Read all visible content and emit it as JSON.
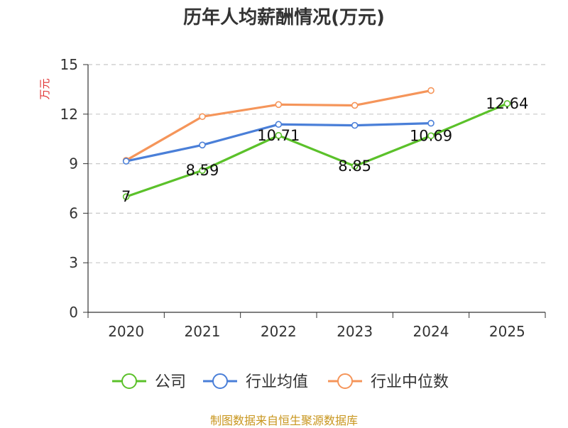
{
  "chart_data": {
    "type": "line",
    "title": "历年人均薪酬情况(万元)",
    "ylabel": "万元",
    "xlabel": "",
    "ylim": [
      0,
      15
    ],
    "yticks": [
      0,
      3,
      6,
      9,
      12,
      15
    ],
    "categories": [
      "2020",
      "2021",
      "2022",
      "2023",
      "2024",
      "2025"
    ],
    "grid": true,
    "legend_position": "bottom",
    "series": [
      {
        "name": "公司",
        "color": "#5bc12a",
        "values": [
          7,
          8.59,
          10.71,
          8.85,
          10.69,
          12.64
        ],
        "labels": [
          "7",
          "8.59",
          "10.71",
          "8.85",
          "10.69",
          "12.64"
        ]
      },
      {
        "name": "行业均值",
        "color": "#4a7fd8",
        "values": [
          9.15,
          10.13,
          11.38,
          11.32,
          11.45,
          null
        ],
        "labels": []
      },
      {
        "name": "行业中位数",
        "color": "#f5955a",
        "values": [
          9.2,
          11.85,
          12.58,
          12.53,
          13.43,
          null
        ],
        "labels": []
      }
    ]
  },
  "footer": {
    "source": "制图数据来自恒生聚源数据库"
  }
}
